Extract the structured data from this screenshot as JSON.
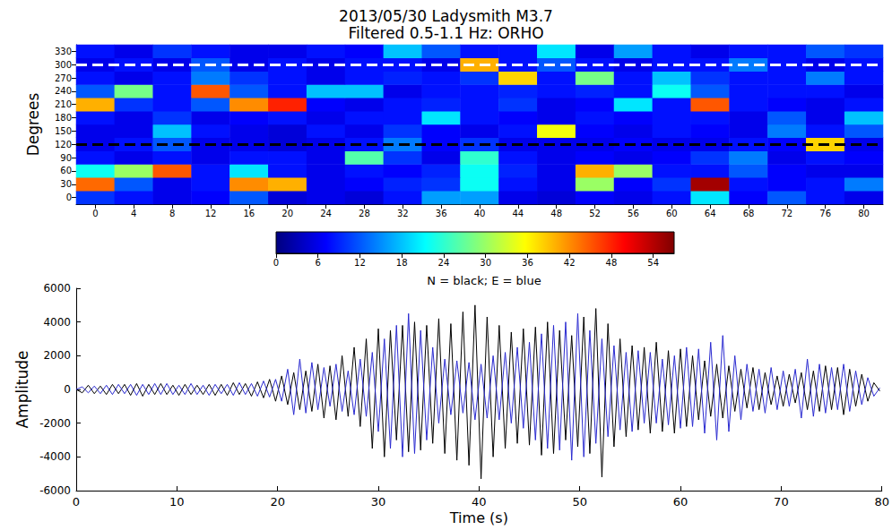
{
  "chart_data": [
    {
      "type": "heatmap",
      "title": "2013/05/30 Ladysmith M3.7",
      "subtitle": "Filtered 0.5-1.1 Hz: ORHO",
      "ylabel": "Degrees",
      "x": [
        0,
        4,
        8,
        12,
        16,
        20,
        24,
        28,
        32,
        36,
        40,
        44,
        48,
        52,
        56,
        60,
        64,
        68,
        72,
        76,
        80
      ],
      "y": [
        0,
        30,
        60,
        90,
        120,
        150,
        180,
        210,
        240,
        270,
        300,
        330
      ],
      "cells": [
        [
          10,
          8,
          6,
          7,
          12,
          5,
          6,
          5,
          8,
          16,
          16,
          6,
          5,
          7,
          6,
          8,
          20,
          7,
          12,
          8,
          6
        ],
        [
          44,
          12,
          6,
          8,
          42,
          40,
          6,
          7,
          9,
          10,
          22,
          8,
          6,
          30,
          7,
          10,
          55,
          8,
          7,
          8,
          14
        ],
        [
          22,
          30,
          45,
          8,
          20,
          8,
          6,
          8,
          7,
          9,
          22,
          9,
          6,
          40,
          30,
          8,
          8,
          12,
          7,
          6,
          6
        ],
        [
          8,
          6,
          8,
          6,
          8,
          8,
          6,
          26,
          10,
          6,
          24,
          8,
          6,
          7,
          6,
          7,
          10,
          14,
          6,
          8,
          7
        ],
        [
          6,
          8,
          12,
          6,
          6,
          5,
          6,
          8,
          14,
          7,
          10,
          6,
          6,
          6,
          7,
          6,
          6,
          8,
          7,
          38,
          6
        ],
        [
          6,
          6,
          18,
          8,
          6,
          5,
          8,
          6,
          10,
          7,
          6,
          8,
          35,
          7,
          6,
          8,
          7,
          6,
          14,
          8,
          12
        ],
        [
          8,
          6,
          10,
          6,
          7,
          8,
          6,
          8,
          8,
          20,
          8,
          7,
          6,
          8,
          7,
          8,
          8,
          6,
          12,
          6,
          18
        ],
        [
          40,
          10,
          8,
          12,
          42,
          48,
          7,
          6,
          8,
          9,
          8,
          10,
          6,
          7,
          20,
          8,
          45,
          8,
          7,
          6,
          8
        ],
        [
          12,
          28,
          8,
          45,
          12,
          8,
          18,
          18,
          6,
          8,
          8,
          9,
          8,
          9,
          8,
          22,
          12,
          8,
          8,
          8,
          6
        ],
        [
          8,
          6,
          8,
          14,
          10,
          8,
          6,
          8,
          9,
          8,
          10,
          38,
          8,
          28,
          8,
          18,
          10,
          8,
          8,
          14,
          8
        ],
        [
          6,
          8,
          6,
          12,
          6,
          8,
          6,
          8,
          8,
          6,
          40,
          8,
          12,
          8,
          6,
          8,
          8,
          14,
          8,
          6,
          8
        ],
        [
          8,
          6,
          10,
          8,
          6,
          6,
          8,
          7,
          18,
          12,
          8,
          8,
          20,
          6,
          16,
          8,
          6,
          8,
          8,
          12,
          10
        ]
      ],
      "colorbar": {
        "range": [
          0,
          57
        ],
        "ticks": [
          0,
          6,
          12,
          18,
          24,
          30,
          36,
          42,
          48,
          54
        ]
      },
      "lines": [
        {
          "value": 300,
          "color": "#ffffff",
          "line_style": "dashed"
        },
        {
          "value": 120,
          "color": "#000000",
          "line_style": "dashed"
        }
      ]
    },
    {
      "type": "line",
      "title": "N = black; E = blue",
      "xlabel": "Time (s)",
      "ylabel": "Amplitude",
      "xlim": [
        0,
        80
      ],
      "xticks": [
        0,
        10,
        20,
        30,
        40,
        50,
        60,
        70,
        80
      ],
      "ylim": [
        -6000,
        6000
      ],
      "yticks": [
        -6000,
        -4000,
        -2000,
        0,
        2000,
        4000,
        6000
      ],
      "grid": false,
      "x": [
        0,
        0.6,
        1.2,
        1.8,
        2.4,
        3,
        3.6,
        4.2,
        4.8,
        5.4,
        6,
        6.6,
        7.2,
        7.8,
        8.4,
        9,
        9.6,
        10.2,
        10.8,
        11.4,
        12,
        12.6,
        13.2,
        13.8,
        14.4,
        15,
        15.6,
        16.2,
        16.8,
        17.4,
        18,
        18.6,
        19.2,
        19.8,
        20.4,
        21,
        21.6,
        22.2,
        22.8,
        23.4,
        24,
        24.6,
        25.2,
        25.8,
        26.4,
        27,
        27.6,
        28.2,
        28.8,
        29.4,
        30,
        30.6,
        31.2,
        31.8,
        32.4,
        33,
        33.6,
        34.2,
        34.8,
        35.4,
        36,
        36.6,
        37.2,
        37.8,
        38.4,
        39,
        39.6,
        40.2,
        40.8,
        41.4,
        42,
        42.6,
        43.2,
        43.8,
        44.4,
        45,
        45.6,
        46.2,
        46.8,
        47.4,
        48,
        48.6,
        49.2,
        49.8,
        50.4,
        51,
        51.6,
        52.2,
        52.8,
        53.4,
        54,
        54.6,
        55.2,
        55.8,
        56.4,
        57,
        57.6,
        58.2,
        58.8,
        59.4,
        60,
        60.6,
        61.2,
        61.8,
        62.4,
        63,
        63.6,
        64.2,
        64.8,
        65.4,
        66,
        66.6,
        67.2,
        67.8,
        68.4,
        69,
        69.6,
        70.2,
        70.8,
        71.4,
        72,
        72.6,
        73.2,
        73.8,
        74.4,
        75,
        75.6,
        76.2,
        76.8,
        77.4,
        78,
        78.6,
        79.2,
        79.8
      ],
      "series": [
        {
          "name": "N",
          "color": "#000000",
          "values": [
            0,
            -200,
            250,
            -250,
            200,
            -300,
            300,
            -250,
            300,
            -350,
            350,
            -400,
            300,
            -300,
            350,
            -300,
            250,
            -350,
            300,
            -300,
            250,
            -300,
            300,
            -350,
            300,
            -350,
            400,
            -300,
            350,
            -400,
            450,
            -500,
            600,
            -700,
            800,
            -900,
            1000,
            -1200,
            1100,
            -1300,
            1500,
            -1700,
            1400,
            -1800,
            2000,
            -1600,
            2500,
            -2200,
            3000,
            -3500,
            3600,
            -4000,
            3500,
            -3000,
            3800,
            -3700,
            4000,
            -3600,
            3800,
            -3200,
            4200,
            -3800,
            3900,
            -4200,
            4600,
            -4500,
            5000,
            -5300,
            4300,
            -4000,
            3800,
            -3500,
            3400,
            -3200,
            3600,
            -3300,
            3700,
            -3900,
            4000,
            -3800,
            3500,
            -3000,
            3200,
            -3400,
            4300,
            -3800,
            4800,
            -5200,
            3900,
            -3400,
            3000,
            -2800,
            2600,
            -2400,
            2500,
            -2600,
            2800,
            -2500,
            2300,
            -2600,
            2400,
            -2200,
            2000,
            -1800,
            1700,
            -1600,
            1500,
            -1700,
            1400,
            -1300,
            1200,
            -1100,
            1300,
            -1200,
            1000,
            -900,
            800,
            -1000,
            900,
            -800,
            1000,
            -1200,
            1100,
            -1300,
            1400,
            -1200,
            1300,
            -1500,
            1200,
            -1000,
            900,
            -700,
            400,
            -100
          ]
        },
        {
          "name": "E",
          "color": "#2a2ad0",
          "values": [
            0,
            150,
            -200,
            200,
            -250,
            250,
            -300,
            300,
            -250,
            300,
            -350,
            300,
            -300,
            350,
            -300,
            350,
            -300,
            250,
            -300,
            350,
            -300,
            250,
            -350,
            300,
            -250,
            300,
            -350,
            400,
            -300,
            350,
            -400,
            500,
            -450,
            600,
            -700,
            1200,
            -1500,
            1800,
            -1400,
            1600,
            -1200,
            1300,
            -1000,
            1500,
            -1300,
            1100,
            -1500,
            1800,
            -1600,
            2200,
            -2500,
            3000,
            -3500,
            3800,
            -4000,
            4500,
            -3800,
            3500,
            -3000,
            2500,
            -2000,
            1800,
            -1500,
            1700,
            -1400,
            1600,
            -1800,
            1500,
            -1700,
            2000,
            -1800,
            2200,
            -2000,
            2500,
            -2300,
            2800,
            -3000,
            3300,
            -3500,
            3800,
            -3600,
            4000,
            -4200,
            4500,
            -4000,
            3500,
            -3200,
            3000,
            -2800,
            2600,
            -2400,
            2200,
            -2500,
            2300,
            -2000,
            2200,
            -2000,
            1800,
            -2100,
            2000,
            -2300,
            2500,
            -2200,
            2400,
            -2600,
            2800,
            -3000,
            3200,
            -2500,
            2000,
            -1800,
            1500,
            -1300,
            1200,
            -1400,
            1300,
            -1200,
            1100,
            -1000,
            1200,
            -1700,
            1800,
            -1600,
            1500,
            -1400,
            1300,
            -1200,
            1500,
            -1300,
            1100,
            -900,
            700,
            -400,
            100
          ]
        }
      ]
    }
  ]
}
